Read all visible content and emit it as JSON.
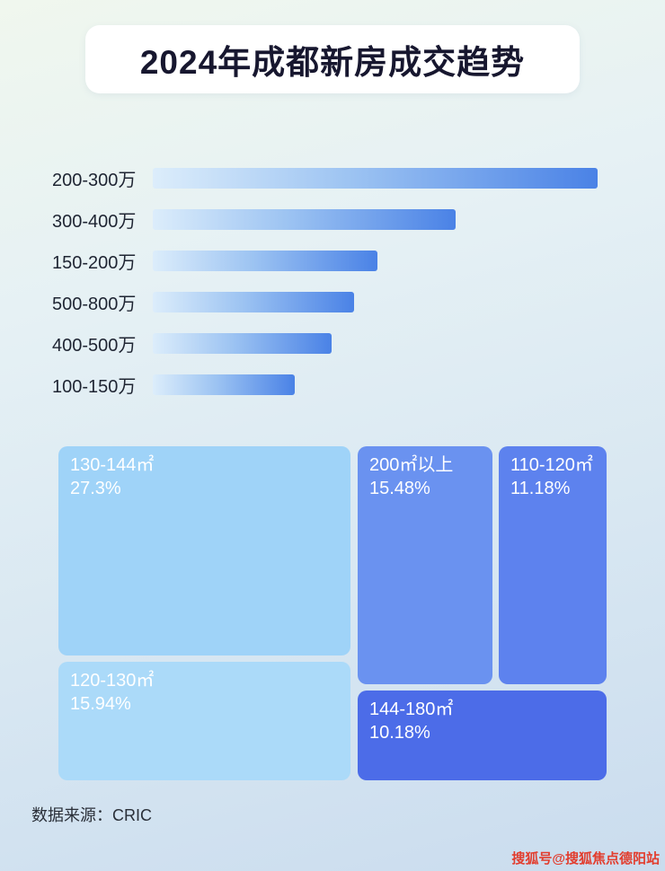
{
  "page": {
    "title": "2024年成都新房成交趋势",
    "source": "数据来源：CRIC",
    "watermark": "搜狐号@搜狐焦点德阳站"
  },
  "colors": {
    "bar_gradient_start": "#dcedfb",
    "bar_gradient_end": "#4a82e6",
    "treemap_light_blue_1": "#9fd3f8",
    "treemap_light_blue_2": "#abdaf9",
    "treemap_mid_blue_1": "#6a92f0",
    "treemap_mid_blue_2": "#5d82ee",
    "treemap_dark_blue": "#4c6ce8",
    "title_text": "#17172f",
    "watermark_red": "#e23d2e"
  },
  "chart_data": [
    {
      "type": "bar",
      "orientation": "horizontal",
      "title": "2024年成都新房成交趋势",
      "categories": [
        "200-300万",
        "300-400万",
        "150-200万",
        "500-800万",
        "400-500万",
        "100-150万"
      ],
      "values": [
        97,
        66,
        49,
        44,
        39,
        31
      ],
      "values_note": "no numeric data labels shown; values are estimated bar lengths as % of chart track width relative to longest bar",
      "xlabel": "",
      "ylabel": "",
      "grid": false,
      "legend": false
    },
    {
      "type": "treemap",
      "title": "",
      "items": [
        {
          "label": "130-144㎡",
          "value": 27.3,
          "value_label": "27.3%"
        },
        {
          "label": "200㎡以上",
          "value": 15.48,
          "value_label": "15.48%"
        },
        {
          "label": "110-120㎡",
          "value": 11.18,
          "value_label": "11.18%"
        },
        {
          "label": "120-130㎡",
          "value": 15.94,
          "value_label": "15.94%"
        },
        {
          "label": "144-180㎡",
          "value": 10.18,
          "value_label": "10.18%"
        }
      ]
    }
  ]
}
